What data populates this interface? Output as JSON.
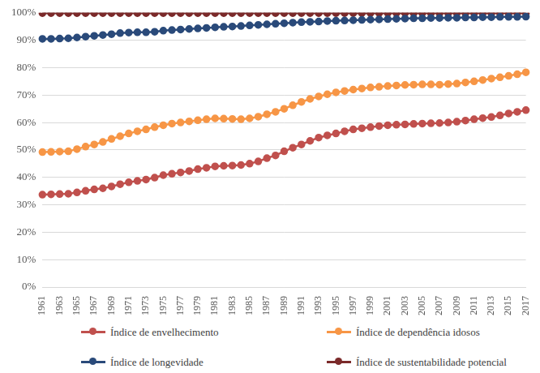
{
  "chart_data": {
    "type": "line",
    "categories": [
      1961,
      null,
      1963,
      null,
      1965,
      null,
      1967,
      null,
      1969,
      null,
      1971,
      null,
      1973,
      null,
      1975,
      null,
      1977,
      null,
      1979,
      null,
      1981,
      null,
      1983,
      null,
      1985,
      null,
      1987,
      null,
      1989,
      null,
      1991,
      null,
      1993,
      null,
      1995,
      null,
      1997,
      null,
      1999,
      null,
      2001,
      null,
      2003,
      null,
      2005,
      null,
      2007,
      null,
      2009,
      null,
      2011,
      null,
      2013,
      null,
      2015,
      null,
      2017
    ],
    "series": [
      {
        "name": "Índice de envelhecimento",
        "color": "#c0504d",
        "values": [
          33.7,
          33.8,
          33.9,
          34.0,
          34.5,
          35.1,
          35.6,
          36.0,
          36.7,
          37.5,
          38.2,
          38.7,
          39.2,
          39.9,
          40.8,
          41.3,
          41.8,
          42.3,
          43.0,
          43.5,
          44.0,
          44.2,
          44.3,
          44.5,
          45.0,
          45.8,
          47.0,
          48.0,
          49.5,
          50.8,
          52.0,
          53.3,
          54.5,
          55.3,
          56.0,
          56.8,
          57.5,
          57.9,
          58.3,
          58.7,
          59.0,
          59.2,
          59.3,
          59.5,
          59.6,
          59.7,
          59.8,
          60.0,
          60.3,
          60.7,
          61.2,
          61.6,
          62.0,
          62.6,
          63.3,
          63.9,
          64.5
        ]
      },
      {
        "name": "Índice de dependência idosos",
        "color": "#f79646",
        "values": [
          49.2,
          49.3,
          49.4,
          49.5,
          50.3,
          51.2,
          52.0,
          52.9,
          54.0,
          55.0,
          56.0,
          56.8,
          57.5,
          58.3,
          59.0,
          59.6,
          60.0,
          60.4,
          60.8,
          61.2,
          61.5,
          61.4,
          61.3,
          61.2,
          61.5,
          62.1,
          63.0,
          63.9,
          65.0,
          66.3,
          67.5,
          68.6,
          69.5,
          70.3,
          71.0,
          71.5,
          72.0,
          72.4,
          72.8,
          73.0,
          73.3,
          73.5,
          73.7,
          73.8,
          73.9,
          73.9,
          73.8,
          74.0,
          74.2,
          74.6,
          75.0,
          75.5,
          76.0,
          76.5,
          77.0,
          77.6,
          78.3
        ]
      },
      {
        "name": "Índice de longevidade",
        "color": "#2a4a7a",
        "values": [
          90.5,
          90.5,
          90.6,
          90.7,
          91.0,
          91.3,
          91.6,
          91.9,
          92.2,
          92.6,
          92.8,
          92.9,
          92.9,
          93.1,
          93.5,
          93.7,
          93.9,
          94.1,
          94.3,
          94.5,
          94.7,
          94.9,
          95.0,
          95.2,
          95.4,
          95.6,
          95.8,
          96.0,
          96.2,
          96.4,
          96.6,
          96.7,
          96.8,
          97.0,
          97.1,
          97.2,
          97.3,
          97.4,
          97.5,
          97.6,
          97.7,
          97.8,
          97.9,
          98.0,
          98.0,
          98.1,
          98.1,
          98.2,
          98.2,
          98.3,
          98.3,
          98.4,
          98.4,
          98.5,
          98.5,
          98.5,
          98.6
        ]
      },
      {
        "name": "Índice de sustentabilidade potencial",
        "color": "#7b2a2a",
        "values": [
          99.9,
          99.9,
          99.9,
          99.9,
          99.9,
          99.9,
          99.9,
          99.9,
          99.9,
          99.9,
          99.9,
          99.9,
          99.9,
          99.9,
          99.9,
          99.9,
          99.9,
          99.9,
          99.9,
          99.9,
          99.9,
          99.9,
          99.9,
          99.9,
          99.9,
          99.9,
          99.9,
          99.9,
          99.9,
          99.9,
          99.9,
          99.9,
          99.9,
          99.9,
          99.9,
          99.9,
          99.9,
          99.9,
          99.9,
          99.9,
          99.9,
          99.9,
          99.9,
          99.9,
          99.9,
          99.9,
          99.9,
          99.9,
          99.9,
          99.9,
          99.9,
          99.9,
          99.9,
          99.9,
          99.9,
          99.9,
          99.9
        ]
      }
    ],
    "ylim": [
      0,
      100
    ],
    "yticks": [
      {
        "value": 0,
        "label": "0%"
      },
      {
        "value": 10,
        "label": "10%"
      },
      {
        "value": 20,
        "label": "20%"
      },
      {
        "value": 30,
        "label": "30%"
      },
      {
        "value": 40,
        "label": "40%"
      },
      {
        "value": 50,
        "label": "50%"
      },
      {
        "value": 60,
        "label": "60%"
      },
      {
        "value": 70,
        "label": "70%"
      },
      {
        "value": 80,
        "label": "80%"
      },
      {
        "value": 90,
        "label": "90%"
      },
      {
        "value": 100,
        "label": "100%"
      }
    ],
    "grid": true,
    "legend": "bottom",
    "marker": "circle"
  }
}
